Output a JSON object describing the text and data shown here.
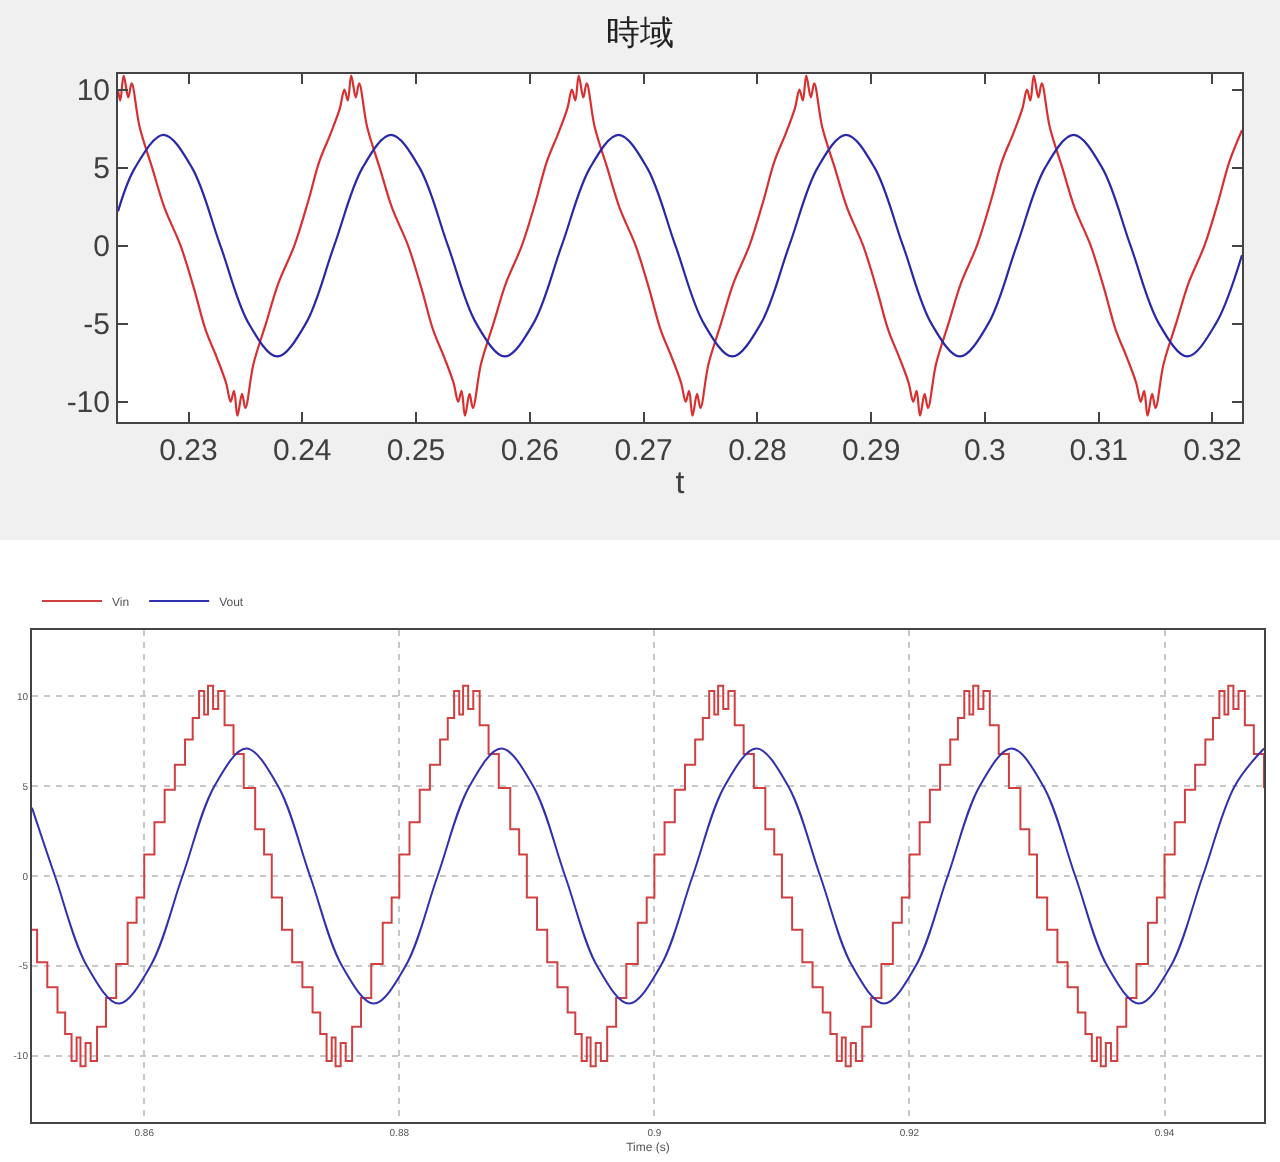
{
  "chart_data": [
    {
      "type": "line",
      "title": "時域",
      "xlabel": "t",
      "xlim": [
        0.2238,
        0.3226
      ],
      "xticks": [
        0.23,
        0.24,
        0.25,
        0.26,
        0.27,
        0.28,
        0.29,
        0.3,
        0.31,
        0.32
      ],
      "ylim": [
        -11.3,
        11.0
      ],
      "yticks": [
        -10,
        -5,
        0,
        5,
        10
      ],
      "grid": false,
      "series": [
        {
          "color": "#d83030",
          "x": [
            0.2238,
            0.224,
            0.2243,
            0.2247,
            0.225,
            0.2257,
            0.2268,
            0.2279,
            0.2293,
            0.2305,
            0.2315,
            0.2325,
            0.2333,
            0.2337,
            0.234,
            0.2343,
            0.2347,
            0.235,
            0.2357,
            0.2368,
            0.2379,
            0.2393,
            0.2405,
            0.2415,
            0.2425,
            0.2433,
            0.2437,
            0.244,
            0.2443,
            0.2447,
            0.245,
            0.2457,
            0.2468,
            0.2479,
            0.2493,
            0.2505,
            0.2515,
            0.2525,
            0.2533,
            0.2537,
            0.254,
            0.2543,
            0.2547,
            0.255,
            0.2557,
            0.2568,
            0.2579,
            0.2593,
            0.2605,
            0.2615,
            0.2625,
            0.2633,
            0.2637,
            0.264,
            0.2643,
            0.2647,
            0.265,
            0.2657,
            0.2668,
            0.2679,
            0.2693,
            0.2705,
            0.2715,
            0.2725,
            0.2733,
            0.2737,
            0.274,
            0.2743,
            0.2747,
            0.275,
            0.2757,
            0.2768,
            0.2779,
            0.2793,
            0.2805,
            0.2815,
            0.2825,
            0.2833,
            0.2837,
            0.284,
            0.2843,
            0.2847,
            0.285,
            0.2857,
            0.2868,
            0.2879,
            0.2893,
            0.2905,
            0.2915,
            0.2925,
            0.2933,
            0.2937,
            0.294,
            0.2943,
            0.2947,
            0.295,
            0.2957,
            0.2968,
            0.2979,
            0.2993,
            0.3005,
            0.3015,
            0.3025,
            0.3033,
            0.3037,
            0.304,
            0.3043,
            0.3047,
            0.305,
            0.3057,
            0.3068,
            0.3079,
            0.3093,
            0.3105,
            0.3115,
            0.3125,
            0.3133,
            0.3137,
            0.314,
            0.3143,
            0.3147,
            0.315,
            0.3157,
            0.3168,
            0.3179,
            0.3193,
            0.3205,
            0.3215,
            0.3226
          ],
          "values": [
            10.0,
            9.3,
            10.9,
            9.5,
            10.4,
            7.6,
            5.0,
            2.4,
            0,
            -2.8,
            -5.4,
            -7.2,
            -8.8,
            -10.0,
            -9.3,
            -10.9,
            -9.5,
            -10.4,
            -7.6,
            -5.0,
            -2.4,
            0,
            2.8,
            5.4,
            7.2,
            8.8,
            10.0,
            9.3,
            10.9,
            9.5,
            10.4,
            7.6,
            5.0,
            2.4,
            0,
            -2.8,
            -5.4,
            -7.2,
            -8.8,
            -10.0,
            -9.3,
            -10.9,
            -9.5,
            -10.4,
            -7.6,
            -5.0,
            -2.4,
            0,
            2.8,
            5.4,
            7.2,
            8.8,
            10.0,
            9.3,
            10.9,
            9.5,
            10.4,
            7.6,
            5.0,
            2.4,
            0,
            -2.8,
            -5.4,
            -7.2,
            -8.8,
            -10.0,
            -9.3,
            -10.9,
            -9.5,
            -10.4,
            -7.6,
            -5.0,
            -2.4,
            0,
            2.8,
            5.4,
            7.2,
            8.8,
            10.0,
            9.3,
            10.9,
            9.5,
            10.4,
            7.6,
            5.0,
            2.4,
            0,
            -2.8,
            -5.4,
            -7.2,
            -8.8,
            -10.0,
            -9.3,
            -10.9,
            -9.5,
            -10.4,
            -7.6,
            -5.0,
            -2.4,
            0,
            2.8,
            5.4,
            7.2,
            8.8,
            10.0,
            9.3,
            10.9,
            9.5,
            10.4,
            7.6,
            5.0,
            2.4,
            0,
            -2.8,
            -5.4,
            -7.2,
            -8.8,
            -10.0,
            -9.3,
            -10.9,
            -9.5,
            -10.4,
            -7.6,
            -5.0,
            -2.4,
            0,
            2.8,
            5.4,
            7.4
          ]
        },
        {
          "color": "#2828a8",
          "x": [
            0.2238,
            0.2253,
            0.2278,
            0.2303,
            0.2328,
            0.2353,
            0.2378,
            0.2403,
            0.2428,
            0.2453,
            0.2478,
            0.2503,
            0.2528,
            0.2553,
            0.2578,
            0.2603,
            0.2628,
            0.2653,
            0.2678,
            0.2703,
            0.2728,
            0.2753,
            0.2778,
            0.2803,
            0.2828,
            0.2853,
            0.2878,
            0.2903,
            0.2928,
            0.2953,
            0.2978,
            0.3003,
            0.3028,
            0.3053,
            0.3078,
            0.3103,
            0.3128,
            0.3153,
            0.3178,
            0.3203,
            0.3226
          ],
          "values": [
            2.2,
            5.0,
            7.1,
            5.0,
            0,
            -5.0,
            -7.1,
            -5.0,
            0,
            5.0,
            7.1,
            5.0,
            0,
            -5.0,
            -7.1,
            -5.0,
            0,
            5.0,
            7.1,
            5.0,
            0,
            -5.0,
            -7.1,
            -5.0,
            0,
            5.0,
            7.1,
            5.0,
            0,
            -5.0,
            -7.1,
            -5.0,
            0,
            5.0,
            7.1,
            5.0,
            0,
            -5.0,
            -7.1,
            -5.0,
            -0.6
          ]
        }
      ]
    },
    {
      "type": "line",
      "xlabel": "Time (s)",
      "xlim": [
        0.8512,
        0.9478
      ],
      "xticks": [
        0.86,
        0.88,
        0.9,
        0.92,
        0.94
      ],
      "ylim": [
        -13.7,
        13.7
      ],
      "yticks": [
        -10,
        -5,
        0,
        5,
        10
      ],
      "grid": true,
      "legend": "top left",
      "series": [
        {
          "name": "Vin",
          "type": "step",
          "color": "#d04040",
          "x": [
            0.8512,
            0.8516,
            0.8524,
            0.8532,
            0.8538,
            0.8543,
            0.8547,
            0.855,
            0.8554,
            0.8558,
            0.8563,
            0.857,
            0.8578,
            0.8587,
            0.8594,
            0.86,
            0.8608,
            0.8616,
            0.8624,
            0.8632,
            0.8638,
            0.8643,
            0.8647,
            0.865,
            0.8654,
            0.8658,
            0.8663,
            0.867,
            0.8678,
            0.8687,
            0.8694,
            0.87,
            0.8708,
            0.8716,
            0.8724,
            0.8732,
            0.8738,
            0.8743,
            0.8747,
            0.875,
            0.8754,
            0.8758,
            0.8763,
            0.877,
            0.8778,
            0.8787,
            0.8794,
            0.88,
            0.8808,
            0.8816,
            0.8824,
            0.8832,
            0.8838,
            0.8843,
            0.8847,
            0.885,
            0.8854,
            0.8858,
            0.8863,
            0.887,
            0.8878,
            0.8887,
            0.8894,
            0.89,
            0.8908,
            0.8916,
            0.8924,
            0.8932,
            0.8938,
            0.8943,
            0.8947,
            0.895,
            0.8954,
            0.8958,
            0.8963,
            0.897,
            0.8978,
            0.8987,
            0.8994,
            0.9,
            0.9008,
            0.9016,
            0.9024,
            0.9032,
            0.9038,
            0.9043,
            0.9047,
            0.905,
            0.9054,
            0.9058,
            0.9063,
            0.907,
            0.9078,
            0.9087,
            0.9094,
            0.91,
            0.9108,
            0.9116,
            0.9124,
            0.9132,
            0.9138,
            0.9143,
            0.9147,
            0.915,
            0.9154,
            0.9158,
            0.9163,
            0.917,
            0.9178,
            0.9187,
            0.9194,
            0.92,
            0.9208,
            0.9216,
            0.9224,
            0.9232,
            0.9238,
            0.9243,
            0.9247,
            0.925,
            0.9254,
            0.9258,
            0.9263,
            0.927,
            0.9278,
            0.9287,
            0.9294,
            0.93,
            0.9308,
            0.9316,
            0.9324,
            0.9332,
            0.9338,
            0.9343,
            0.9347,
            0.935,
            0.9354,
            0.9358,
            0.9363,
            0.937,
            0.9378,
            0.9387,
            0.9394,
            0.94,
            0.9408,
            0.9416,
            0.9424,
            0.9432,
            0.9438,
            0.9443,
            0.9447,
            0.945,
            0.9454,
            0.9458,
            0.9463,
            0.947,
            0.9478
          ],
          "values": [
            -3.0,
            -4.8,
            -6.2,
            -7.6,
            -8.8,
            -10.3,
            -9.0,
            -10.6,
            -9.3,
            -10.3,
            -8.4,
            -6.8,
            -4.9,
            -2.6,
            -1.2,
            1.2,
            3.0,
            4.8,
            6.2,
            7.6,
            8.8,
            10.3,
            9.0,
            10.6,
            9.3,
            10.3,
            8.4,
            6.8,
            4.9,
            2.6,
            1.2,
            -1.2,
            -3.0,
            -4.8,
            -6.2,
            -7.6,
            -8.8,
            -10.3,
            -9.0,
            -10.6,
            -9.3,
            -10.3,
            -8.4,
            -6.8,
            -4.9,
            -2.6,
            -1.2,
            1.2,
            3.0,
            4.8,
            6.2,
            7.6,
            8.8,
            10.3,
            9.0,
            10.6,
            9.3,
            10.3,
            8.4,
            6.8,
            4.9,
            2.6,
            1.2,
            -1.2,
            -3.0,
            -4.8,
            -6.2,
            -7.6,
            -8.8,
            -10.3,
            -9.0,
            -10.6,
            -9.3,
            -10.3,
            -8.4,
            -6.8,
            -4.9,
            -2.6,
            -1.2,
            1.2,
            3.0,
            4.8,
            6.2,
            7.6,
            8.8,
            10.3,
            9.0,
            10.6,
            9.3,
            10.3,
            8.4,
            6.8,
            4.9,
            2.6,
            1.2,
            -1.2,
            -3.0,
            -4.8,
            -6.2,
            -7.6,
            -8.8,
            -10.3,
            -9.0,
            -10.6,
            -9.3,
            -10.3,
            -8.4,
            -6.8,
            -4.9,
            -2.6,
            -1.2,
            1.2,
            3.0,
            4.8,
            6.2,
            7.6,
            8.8,
            10.3,
            9.0,
            10.6,
            9.3,
            10.3,
            8.4,
            6.8,
            4.9,
            2.6,
            1.2,
            -1.2,
            -3.0,
            -4.8,
            -6.2,
            -7.6,
            -8.8,
            -10.3,
            -9.0,
            -10.6,
            -9.3,
            -10.3,
            -8.4,
            -6.8,
            -4.9,
            -2.6,
            -1.2,
            1.2,
            3.0,
            4.8,
            6.2,
            7.6,
            8.8,
            10.3,
            9.0,
            10.6,
            9.3,
            10.3,
            8.4,
            6.8,
            4.9
          ]
        },
        {
          "name": "Vout",
          "color": "#3030b0",
          "x": [
            0.8512,
            0.853,
            0.8555,
            0.858,
            0.8605,
            0.863,
            0.8655,
            0.868,
            0.8705,
            0.873,
            0.8755,
            0.878,
            0.8805,
            0.883,
            0.8855,
            0.888,
            0.8905,
            0.893,
            0.8955,
            0.898,
            0.9005,
            0.903,
            0.9055,
            0.908,
            0.9105,
            0.913,
            0.9155,
            0.918,
            0.9205,
            0.923,
            0.9255,
            0.928,
            0.9305,
            0.933,
            0.9355,
            0.938,
            0.9405,
            0.943,
            0.9455,
            0.9478
          ],
          "values": [
            3.8,
            0,
            -5.0,
            -7.1,
            -5.0,
            0,
            5.0,
            7.1,
            5.0,
            0,
            -5.0,
            -7.1,
            -5.0,
            0,
            5.0,
            7.1,
            5.0,
            0,
            -5.0,
            -7.1,
            -5.0,
            0,
            5.0,
            7.1,
            5.0,
            0,
            -5.0,
            -7.1,
            -5.0,
            0,
            5.0,
            7.1,
            5.0,
            0,
            -5.0,
            -7.1,
            -5.0,
            0,
            5.0,
            7.1
          ]
        }
      ]
    }
  ]
}
